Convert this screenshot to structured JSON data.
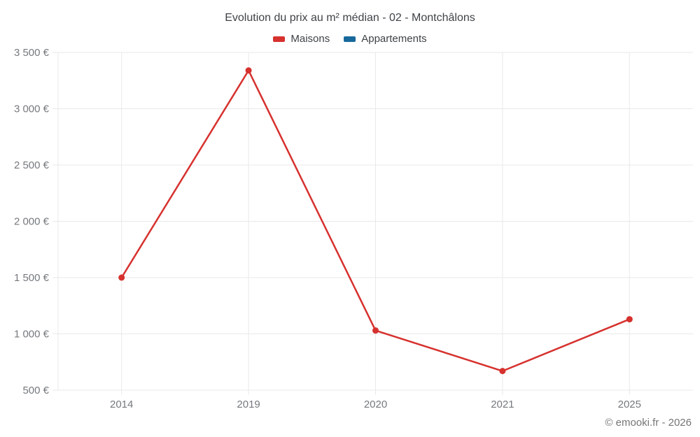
{
  "chart": {
    "title": "Evolution du prix au m² médian - 02 - Montchâlons",
    "footer": "© emooki.fr - 2026",
    "legend": [
      {
        "label": "Maisons",
        "color": "#d6312e"
      },
      {
        "label": "Appartements",
        "color": "#17699c"
      }
    ]
  },
  "chart_data": {
    "type": "line",
    "title": "Evolution du prix au m² médian - 02 - Montchâlons",
    "categories": [
      "2014",
      "2019",
      "2020",
      "2021",
      "2025"
    ],
    "series": [
      {
        "name": "Maisons",
        "color": "#d6312e",
        "values": [
          1500,
          3340,
          1030,
          670,
          1130
        ]
      },
      {
        "name": "Appartements",
        "color": "#17699c",
        "values": []
      }
    ],
    "xlabel": "",
    "ylabel": "",
    "ylim": [
      500,
      3500
    ],
    "ytick_step": 500,
    "ytick_suffix": " €",
    "grid": true,
    "legend_position": "top",
    "grid_color": "#e9e9e9",
    "tick_label_color": "#75797e",
    "footer": "© emooki.fr - 2026"
  }
}
